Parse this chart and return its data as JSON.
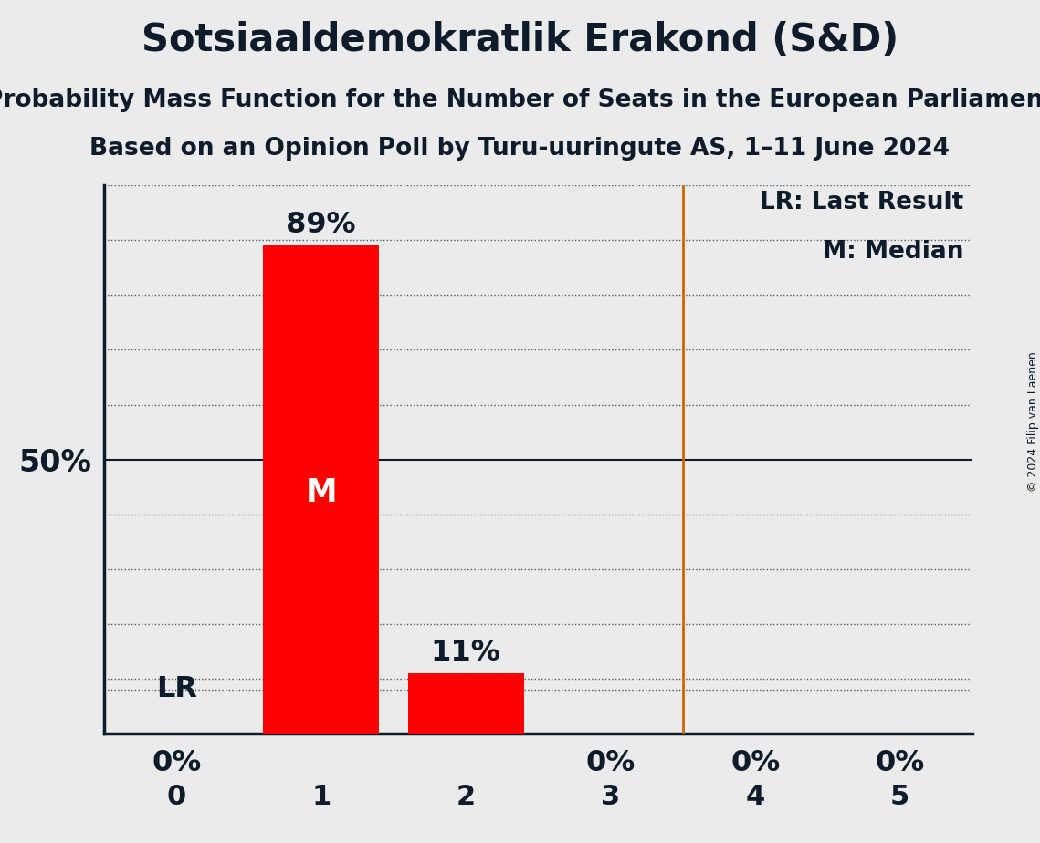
{
  "title": "Sotsiaaldemokratlik Erakond (S&D)",
  "subtitle1": "Probability Mass Function for the Number of Seats in the European Parliament",
  "subtitle2": "Based on an Opinion Poll by Turu-uuringute AS, 1–11 June 2024",
  "copyright": "© 2024 Filip van Laenen",
  "x_values": [
    0,
    1,
    2,
    3,
    4,
    5
  ],
  "y_values": [
    0.0,
    0.89,
    0.11,
    0.0,
    0.0,
    0.0
  ],
  "bar_color": "#FF0000",
  "bar_width": 0.8,
  "median": 1,
  "last_result_line": 3.5,
  "background_color": "#EBEBEB",
  "axis_color": "#0D1B2A",
  "lr_line_color": "#CC6600",
  "ylabel_50": "50%",
  "legend_lr": "LR: Last Result",
  "legend_m": "M: Median",
  "title_fontsize": 30,
  "subtitle_fontsize": 19,
  "tick_fontsize": 22,
  "bar_label_fontsize": 23,
  "ylabel_fontsize": 24,
  "legend_fontsize": 19,
  "copyright_fontsize": 9
}
